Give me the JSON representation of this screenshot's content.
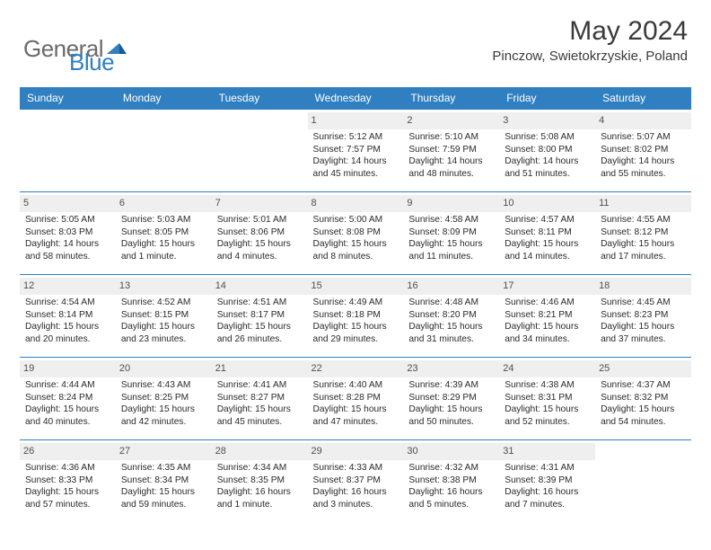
{
  "logo": {
    "text1": "General",
    "text2": "Blue",
    "color1": "#6a6a6a",
    "color2": "#2f7fc1"
  },
  "title": "May 2024",
  "location": "Pinczow, Swietokrzyskie, Poland",
  "weekdays": [
    "Sunday",
    "Monday",
    "Tuesday",
    "Wednesday",
    "Thursday",
    "Friday",
    "Saturday"
  ],
  "colors": {
    "header_bg": "#2f7fc1",
    "header_fg": "#ffffff",
    "daynum_bg": "#efefef",
    "text": "#2a2a2a",
    "rule": "#2f7fc1"
  },
  "weeks": [
    [
      null,
      null,
      null,
      {
        "n": "1",
        "sr": "Sunrise: 5:12 AM",
        "ss": "Sunset: 7:57 PM",
        "d1": "Daylight: 14 hours",
        "d2": "and 45 minutes."
      },
      {
        "n": "2",
        "sr": "Sunrise: 5:10 AM",
        "ss": "Sunset: 7:59 PM",
        "d1": "Daylight: 14 hours",
        "d2": "and 48 minutes."
      },
      {
        "n": "3",
        "sr": "Sunrise: 5:08 AM",
        "ss": "Sunset: 8:00 PM",
        "d1": "Daylight: 14 hours",
        "d2": "and 51 minutes."
      },
      {
        "n": "4",
        "sr": "Sunrise: 5:07 AM",
        "ss": "Sunset: 8:02 PM",
        "d1": "Daylight: 14 hours",
        "d2": "and 55 minutes."
      }
    ],
    [
      {
        "n": "5",
        "sr": "Sunrise: 5:05 AM",
        "ss": "Sunset: 8:03 PM",
        "d1": "Daylight: 14 hours",
        "d2": "and 58 minutes."
      },
      {
        "n": "6",
        "sr": "Sunrise: 5:03 AM",
        "ss": "Sunset: 8:05 PM",
        "d1": "Daylight: 15 hours",
        "d2": "and 1 minute."
      },
      {
        "n": "7",
        "sr": "Sunrise: 5:01 AM",
        "ss": "Sunset: 8:06 PM",
        "d1": "Daylight: 15 hours",
        "d2": "and 4 minutes."
      },
      {
        "n": "8",
        "sr": "Sunrise: 5:00 AM",
        "ss": "Sunset: 8:08 PM",
        "d1": "Daylight: 15 hours",
        "d2": "and 8 minutes."
      },
      {
        "n": "9",
        "sr": "Sunrise: 4:58 AM",
        "ss": "Sunset: 8:09 PM",
        "d1": "Daylight: 15 hours",
        "d2": "and 11 minutes."
      },
      {
        "n": "10",
        "sr": "Sunrise: 4:57 AM",
        "ss": "Sunset: 8:11 PM",
        "d1": "Daylight: 15 hours",
        "d2": "and 14 minutes."
      },
      {
        "n": "11",
        "sr": "Sunrise: 4:55 AM",
        "ss": "Sunset: 8:12 PM",
        "d1": "Daylight: 15 hours",
        "d2": "and 17 minutes."
      }
    ],
    [
      {
        "n": "12",
        "sr": "Sunrise: 4:54 AM",
        "ss": "Sunset: 8:14 PM",
        "d1": "Daylight: 15 hours",
        "d2": "and 20 minutes."
      },
      {
        "n": "13",
        "sr": "Sunrise: 4:52 AM",
        "ss": "Sunset: 8:15 PM",
        "d1": "Daylight: 15 hours",
        "d2": "and 23 minutes."
      },
      {
        "n": "14",
        "sr": "Sunrise: 4:51 AM",
        "ss": "Sunset: 8:17 PM",
        "d1": "Daylight: 15 hours",
        "d2": "and 26 minutes."
      },
      {
        "n": "15",
        "sr": "Sunrise: 4:49 AM",
        "ss": "Sunset: 8:18 PM",
        "d1": "Daylight: 15 hours",
        "d2": "and 29 minutes."
      },
      {
        "n": "16",
        "sr": "Sunrise: 4:48 AM",
        "ss": "Sunset: 8:20 PM",
        "d1": "Daylight: 15 hours",
        "d2": "and 31 minutes."
      },
      {
        "n": "17",
        "sr": "Sunrise: 4:46 AM",
        "ss": "Sunset: 8:21 PM",
        "d1": "Daylight: 15 hours",
        "d2": "and 34 minutes."
      },
      {
        "n": "18",
        "sr": "Sunrise: 4:45 AM",
        "ss": "Sunset: 8:23 PM",
        "d1": "Daylight: 15 hours",
        "d2": "and 37 minutes."
      }
    ],
    [
      {
        "n": "19",
        "sr": "Sunrise: 4:44 AM",
        "ss": "Sunset: 8:24 PM",
        "d1": "Daylight: 15 hours",
        "d2": "and 40 minutes."
      },
      {
        "n": "20",
        "sr": "Sunrise: 4:43 AM",
        "ss": "Sunset: 8:25 PM",
        "d1": "Daylight: 15 hours",
        "d2": "and 42 minutes."
      },
      {
        "n": "21",
        "sr": "Sunrise: 4:41 AM",
        "ss": "Sunset: 8:27 PM",
        "d1": "Daylight: 15 hours",
        "d2": "and 45 minutes."
      },
      {
        "n": "22",
        "sr": "Sunrise: 4:40 AM",
        "ss": "Sunset: 8:28 PM",
        "d1": "Daylight: 15 hours",
        "d2": "and 47 minutes."
      },
      {
        "n": "23",
        "sr": "Sunrise: 4:39 AM",
        "ss": "Sunset: 8:29 PM",
        "d1": "Daylight: 15 hours",
        "d2": "and 50 minutes."
      },
      {
        "n": "24",
        "sr": "Sunrise: 4:38 AM",
        "ss": "Sunset: 8:31 PM",
        "d1": "Daylight: 15 hours",
        "d2": "and 52 minutes."
      },
      {
        "n": "25",
        "sr": "Sunrise: 4:37 AM",
        "ss": "Sunset: 8:32 PM",
        "d1": "Daylight: 15 hours",
        "d2": "and 54 minutes."
      }
    ],
    [
      {
        "n": "26",
        "sr": "Sunrise: 4:36 AM",
        "ss": "Sunset: 8:33 PM",
        "d1": "Daylight: 15 hours",
        "d2": "and 57 minutes."
      },
      {
        "n": "27",
        "sr": "Sunrise: 4:35 AM",
        "ss": "Sunset: 8:34 PM",
        "d1": "Daylight: 15 hours",
        "d2": "and 59 minutes."
      },
      {
        "n": "28",
        "sr": "Sunrise: 4:34 AM",
        "ss": "Sunset: 8:35 PM",
        "d1": "Daylight: 16 hours",
        "d2": "and 1 minute."
      },
      {
        "n": "29",
        "sr": "Sunrise: 4:33 AM",
        "ss": "Sunset: 8:37 PM",
        "d1": "Daylight: 16 hours",
        "d2": "and 3 minutes."
      },
      {
        "n": "30",
        "sr": "Sunrise: 4:32 AM",
        "ss": "Sunset: 8:38 PM",
        "d1": "Daylight: 16 hours",
        "d2": "and 5 minutes."
      },
      {
        "n": "31",
        "sr": "Sunrise: 4:31 AM",
        "ss": "Sunset: 8:39 PM",
        "d1": "Daylight: 16 hours",
        "d2": "and 7 minutes."
      },
      null
    ]
  ]
}
